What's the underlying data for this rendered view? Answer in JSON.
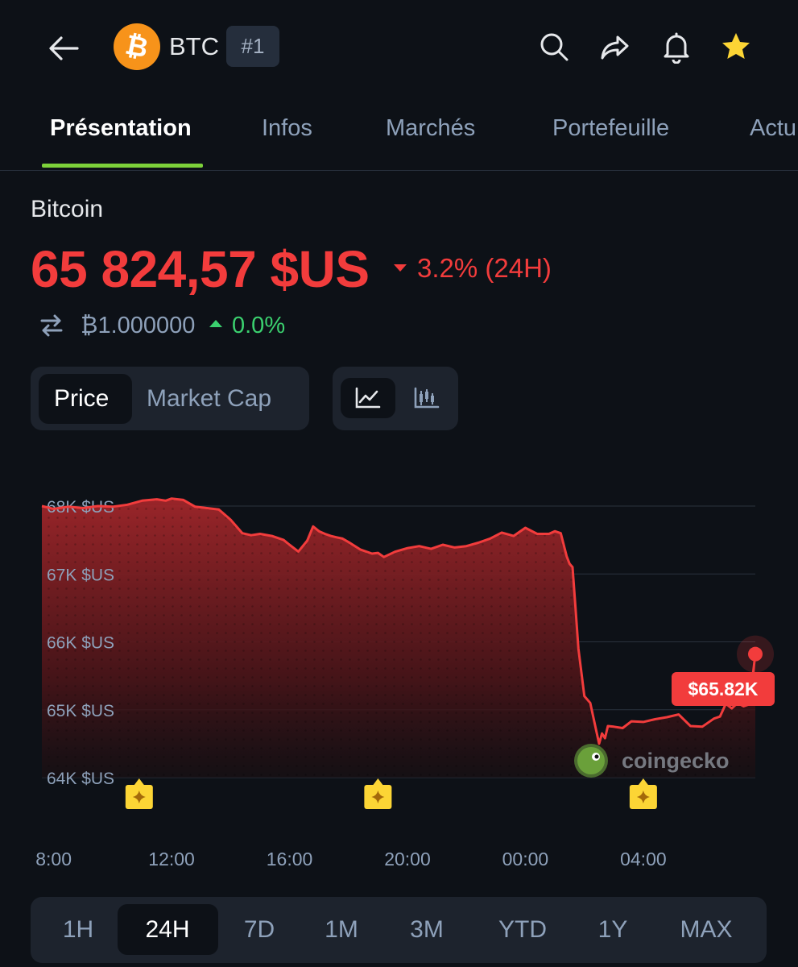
{
  "header": {
    "symbol": "BTC",
    "rank": "#1",
    "coin_logo_glyph": "₿",
    "icons": [
      "back-arrow-icon",
      "search-icon",
      "share-icon",
      "bell-icon",
      "star-icon"
    ]
  },
  "tabs": [
    "Présentation",
    "Infos",
    "Marchés",
    "Portefeuille",
    "Actu"
  ],
  "coin": {
    "name": "Bitcoin",
    "price": "65 824,57 $US",
    "change_24h": "3.2% (24H)",
    "btc_amount": "₿1.000000",
    "btc_change": "0.0%"
  },
  "toggles": {
    "price": "Price",
    "market_cap": "Market Cap"
  },
  "ranges": [
    "1H",
    "24H",
    "7D",
    "1M",
    "3M",
    "YTD",
    "1Y",
    "MAX"
  ],
  "selected_range": "24H",
  "colors": {
    "negative": "#f23c3c",
    "positive": "#3bd16f",
    "tab_underline": "#7dd23a",
    "background": "#0d1117"
  },
  "chart_data": {
    "type": "area",
    "y_tick_labels": [
      "68K $US",
      "67K $US",
      "66K $US",
      "65K $US",
      "64K $US"
    ],
    "y_ticks": [
      68000,
      67000,
      66000,
      65000,
      64000
    ],
    "ylim": [
      64000,
      68000
    ],
    "x_tick_labels": [
      "8:00",
      "12:00",
      "16:00",
      "20:00",
      "00:00",
      "04:00"
    ],
    "x_hours": [
      8,
      12,
      16,
      20,
      24,
      28
    ],
    "xlim": [
      7.6,
      31.8
    ],
    "current_label": "$65.82K",
    "watermark": "coingecko",
    "event_marker_hours": [
      10.9,
      19.0,
      28.0
    ],
    "series": [
      {
        "x": [
          7.6,
          8.0,
          8.5,
          9.0,
          9.5,
          10.0,
          10.5,
          11.0,
          11.5,
          11.8,
          12.0,
          12.4,
          12.8,
          13.2,
          13.6,
          14.0,
          14.4,
          14.7,
          15.0,
          15.4,
          15.8,
          16.0,
          16.3,
          16.6,
          16.8,
          17.0,
          17.2,
          17.4,
          17.6,
          17.8,
          18.0,
          18.4,
          18.8,
          19.0,
          19.2,
          19.6,
          20.0,
          20.4,
          20.8,
          21.2,
          21.6,
          22.0,
          22.4,
          22.8,
          23.2,
          23.6,
          24.0,
          24.4,
          24.8,
          25.0,
          25.2,
          25.4,
          25.5,
          25.6,
          25.7,
          25.8,
          26.0,
          26.2,
          26.4,
          26.5,
          26.6,
          26.7,
          26.8,
          27.0,
          27.3,
          27.6,
          28.0,
          28.4,
          28.8,
          29.2,
          29.6,
          30.0,
          30.4,
          30.6,
          30.8,
          31.0,
          31.2,
          31.4,
          31.6,
          31.8
        ],
        "y": [
          68000,
          67960,
          67990,
          67970,
          68000,
          67990,
          68020,
          68080,
          68100,
          68080,
          68110,
          68090,
          67990,
          67970,
          67950,
          67800,
          67600,
          67570,
          67590,
          67560,
          67500,
          67430,
          67330,
          67490,
          67700,
          67630,
          67590,
          67560,
          67540,
          67520,
          67470,
          67360,
          67300,
          67310,
          67250,
          67330,
          67380,
          67410,
          67370,
          67430,
          67390,
          67410,
          67460,
          67520,
          67610,
          67560,
          67680,
          67590,
          67590,
          67630,
          67600,
          67260,
          67150,
          67100,
          66500,
          65900,
          65200,
          65100,
          64700,
          64500,
          64650,
          64580,
          64760,
          64750,
          64730,
          64830,
          64820,
          64860,
          64890,
          64930,
          64760,
          64750,
          64870,
          64900,
          65090,
          65020,
          65100,
          65050,
          65080,
          65820
        ]
      }
    ]
  }
}
